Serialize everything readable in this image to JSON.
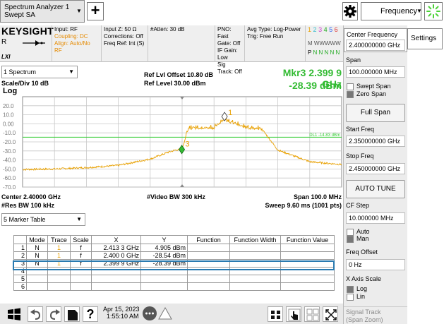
{
  "top": {
    "mode_line1": "Spectrum Analyzer 1",
    "mode_line2": "Swept SA",
    "plus": "+",
    "menu_label": "Frequency"
  },
  "info": {
    "brand": "KEYSIGHT",
    "r": "R",
    "lxi": "LXI",
    "input": "Input: RF",
    "coupling": "Coupling: DC",
    "align": "Align: Auto/No RF",
    "input_z": "Input Z: 50 Ω",
    "corrections": "Corrections: Off",
    "freq_ref": "Freq Ref: Int (S)",
    "atten": "#Atten: 30 dB",
    "pno": "PNO: Fast",
    "gate": "Gate: Off",
    "if_gain": "IF Gain: Low",
    "sig_track": "Sig Track: Off",
    "avg_type": "Avg Type: Log-Power",
    "trig": "Trig: Free Run",
    "trace_nums": [
      "1",
      "2",
      "3",
      "4",
      "5",
      "6"
    ],
    "trace_types": "M WWWWW",
    "trace_det_p": "P",
    "trace_det_n": "N N N N N"
  },
  "plot": {
    "spectrum_label": "1 Spectrum",
    "scale_div": "Scale/Div 10 dB",
    "log": "Log",
    "ref_offset": "Ref Lvl Offset 10.80 dB",
    "ref_level": "Ref Level 30.00 dBm",
    "mkr_label": "Mkr3  2.399 9 GHz",
    "mkr_value": "-28.39 dBm",
    "dl_label": "DL1 -14.83 dBm",
    "center": "Center 2.40000 GHz",
    "res_bw": "#Res BW 100 kHz",
    "video_bw": "#Video BW 300 kHz",
    "span": "Span 100.0 MHz",
    "sweep": "Sweep 9.60 ms (1001 pts)",
    "marker1_num": "1",
    "marker3_num": "3"
  },
  "chart_data": {
    "type": "line",
    "ylabel": "dBm",
    "y_ticks": [
      "20.0",
      "10.0",
      "0.00",
      "-10.0",
      "-20.0",
      "-30.0",
      "-40.0",
      "-50.0",
      "-60.0",
      "-70.0"
    ],
    "ylim": [
      -70,
      30
    ],
    "xlim_ghz": [
      2.35,
      2.45
    ],
    "display_line_dbm": -14.83,
    "grid": true,
    "series": [
      {
        "x_ghz": [
          2.35,
          2.36,
          2.37,
          2.38,
          2.39,
          2.393,
          2.396,
          2.398,
          2.3999,
          2.402,
          2.405,
          2.41,
          2.413,
          2.42,
          2.425,
          2.427,
          2.43,
          2.44,
          2.45
        ],
        "y_dbm": [
          -50.5,
          -50,
          -48.5,
          -46,
          -39,
          -35,
          -31,
          -29,
          -28.4,
          -5,
          -4.5,
          -4.5,
          4.9,
          -4.5,
          -6,
          -15,
          -29,
          -42,
          -45
        ]
      }
    ],
    "markers": [
      {
        "num": "1",
        "x_ghz": 2.4133,
        "y_dbm": 4.905
      },
      {
        "num": "3",
        "x_ghz": 2.3999,
        "y_dbm": -28.39
      }
    ]
  },
  "marker_table": {
    "dropdown": "5 Marker Table",
    "headers": [
      "",
      "Mode",
      "Trace",
      "Scale",
      "X",
      "Y",
      "Function",
      "Function Width",
      "Function Value"
    ],
    "rows": [
      [
        "1",
        "N",
        "1",
        "f",
        "2.413 3 GHz",
        "4.905 dBm",
        "",
        "",
        ""
      ],
      [
        "2",
        "N",
        "1",
        "f",
        "2.400 0 GHz",
        "-28.54 dBm",
        "",
        "",
        ""
      ],
      [
        "3",
        "N",
        "1",
        "f",
        "2.399 9 GHz",
        "-28.39 dBm",
        "",
        "",
        ""
      ],
      [
        "4",
        "",
        "",
        "",
        "",
        "",
        "",
        "",
        ""
      ],
      [
        "5",
        "",
        "",
        "",
        "",
        "",
        "",
        "",
        ""
      ],
      [
        "6",
        "",
        "",
        "",
        "",
        "",
        "",
        "",
        ""
      ]
    ]
  },
  "taskbar": {
    "date": "Apr 15, 2023",
    "time": "1:55:10 AM",
    "help": "?"
  },
  "softkeys": {
    "center_freq_label": "Center Frequency",
    "center_freq_value": "2.400000000 GHz",
    "settings_tab": "Settings",
    "span_label": "Span",
    "span_value": "100.000000 MHz",
    "swept_span": "Swept Span",
    "zero_span": "Zero Span",
    "full_span": "Full Span",
    "start_freq_label": "Start Freq",
    "start_freq_value": "2.350000000 GHz",
    "stop_freq_label": "Stop Freq",
    "stop_freq_value": "2.450000000 GHz",
    "auto_tune": "AUTO TUNE",
    "cf_step_label": "CF Step",
    "cf_step_value": "10.000000 MHz",
    "auto": "Auto",
    "man": "Man",
    "freq_offset_label": "Freq Offset",
    "freq_offset_value": "0 Hz",
    "x_axis_label": "X Axis Scale",
    "log": "Log",
    "lin": "Lin",
    "signal_track": "Signal Track",
    "span_zoom": "(Span Zoom)"
  }
}
